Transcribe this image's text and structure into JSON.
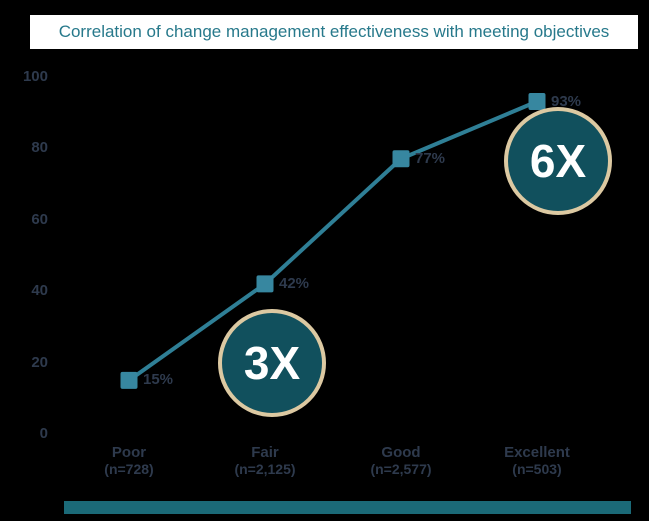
{
  "title": "Correlation of change management effectiveness with meeting objectives",
  "colors": {
    "background": "#000000",
    "title_text": "#27798b",
    "title_background": "#ffffff",
    "line": "#2f7f96",
    "marker": "#3787a0",
    "axis_text": "#2e3a4d",
    "annotation_fill": "#11505d",
    "annotation_border": "#dcc9a2",
    "annotation_text": "#ffffff",
    "footer_bar": "#1b6a78"
  },
  "chart_data": {
    "type": "line",
    "title": "Correlation of change management effectiveness with meeting objectives",
    "categories": [
      "Poor",
      "Fair",
      "Good",
      "Excellent"
    ],
    "category_sublabels": [
      "(n=728)",
      "(n=2,125)",
      "(n=2,577)",
      "(n=503)"
    ],
    "values": [
      15,
      42,
      77,
      93
    ],
    "point_labels": [
      "15%",
      "42%",
      "77%",
      "93%"
    ],
    "y_ticks": [
      0,
      20,
      40,
      60,
      80,
      100
    ],
    "ylim": [
      0,
      100
    ],
    "grid": "off",
    "legend": "none",
    "marker_shape": "square",
    "annotations": [
      {
        "label": "3X",
        "anchor_category": "Fair",
        "anchor_index": 1,
        "at_value": 20,
        "x_offset": 7
      },
      {
        "label": "6X",
        "anchor_category": "Excellent",
        "anchor_index": 3,
        "at_value": 76.5,
        "x_offset": 21
      }
    ]
  }
}
